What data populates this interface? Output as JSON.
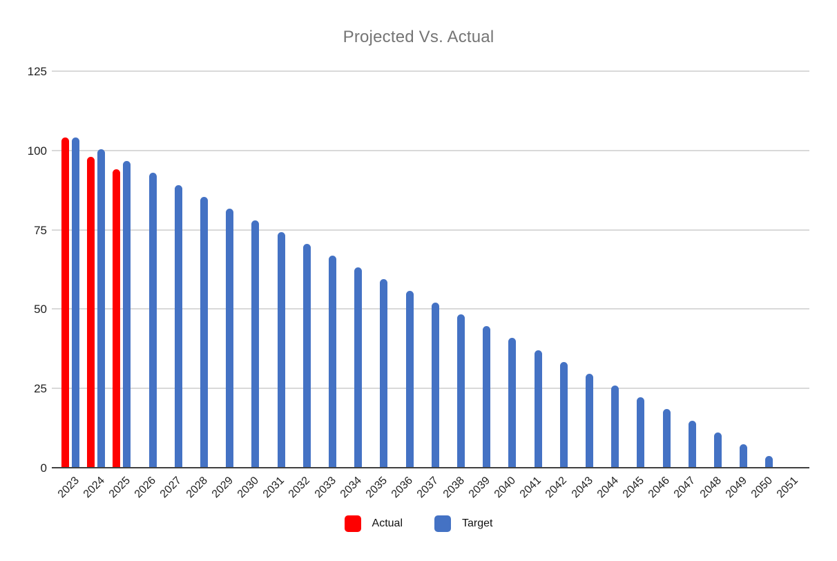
{
  "chart_data": {
    "type": "bar",
    "title": "Projected Vs. Actual",
    "xlabel": "",
    "ylabel": "",
    "categories": [
      "2023",
      "2024",
      "2025",
      "2026",
      "2027",
      "2028",
      "2029",
      "2030",
      "2031",
      "2032",
      "2033",
      "2034",
      "2035",
      "2036",
      "2037",
      "2038",
      "2039",
      "2040",
      "2041",
      "2042",
      "2043",
      "2044",
      "2045",
      "2046",
      "2047",
      "2048",
      "2049",
      "2050",
      "2051"
    ],
    "series": [
      {
        "name": "Actual",
        "color": "#fe0000",
        "values": [
          104.2,
          98,
          94,
          null,
          null,
          null,
          null,
          null,
          null,
          null,
          null,
          null,
          null,
          null,
          null,
          null,
          null,
          null,
          null,
          null,
          null,
          null,
          null,
          null,
          null,
          null,
          null,
          null,
          null
        ]
      },
      {
        "name": "Target",
        "color": "#4472c4",
        "values": [
          104,
          100.3,
          96.6,
          92.9,
          89.1,
          85.4,
          81.7,
          78,
          74.3,
          70.6,
          66.9,
          63.1,
          59.4,
          55.7,
          52,
          48.3,
          44.6,
          40.9,
          37.1,
          33.4,
          29.7,
          26,
          22.3,
          18.6,
          14.9,
          11.1,
          7.4,
          3.7,
          0
        ]
      }
    ],
    "ylim": [
      0,
      125
    ],
    "yticks": [
      0,
      25,
      50,
      75,
      100,
      125
    ],
    "grid": "horizontal",
    "legend_position": "bottom",
    "x_tick_rotation": -45
  },
  "colors": {
    "gridline": "#d9d9d9",
    "axis_line": "#3f3f3f",
    "title_text": "#757575",
    "tick_text": "#1f1f1f"
  }
}
